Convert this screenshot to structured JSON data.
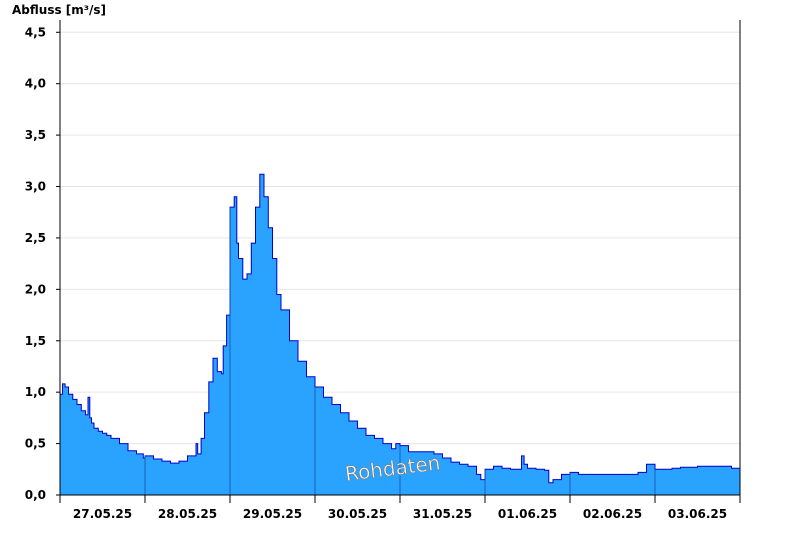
{
  "chart_data": {
    "type": "area",
    "ylabel": "Abfluss [m³/s]",
    "ylim": [
      0,
      4.6
    ],
    "y_ticks": [
      "0,0",
      "0,5",
      "1,0",
      "1,5",
      "2,0",
      "2,5",
      "3,0",
      "3,5",
      "4,0",
      "4,5"
    ],
    "y_tick_values": [
      0,
      0.5,
      1.0,
      1.5,
      2.0,
      2.5,
      3.0,
      3.5,
      4.0,
      4.5
    ],
    "x_ticks": [
      "27.05.25",
      "28.05.25",
      "29.05.25",
      "30.05.25",
      "31.05.25",
      "01.06.25",
      "02.06.25",
      "03.06.25"
    ],
    "x_unit": "days",
    "xlim": [
      0,
      8
    ],
    "grid": true,
    "annotation": "Rohdaten",
    "colors": {
      "fill": "#29a3ff",
      "line": "#0000cc",
      "grid": "#e6e6e6"
    },
    "series": [
      {
        "x": [
          0,
          0.03,
          0.06,
          0.1,
          0.15,
          0.2,
          0.25,
          0.3,
          0.33,
          0.35,
          0.37,
          0.4,
          0.45,
          0.5,
          0.55,
          0.6,
          0.7,
          0.8,
          0.9,
          0.98,
          1.0,
          1.1,
          1.2,
          1.3,
          1.4,
          1.5,
          1.6,
          1.62,
          1.66,
          1.7,
          1.75,
          1.8,
          1.85,
          1.9,
          1.92,
          1.96,
          2.0,
          2.05,
          2.08,
          2.1,
          2.15,
          2.2,
          2.25,
          2.3,
          2.35,
          2.4,
          2.45,
          2.5,
          2.55,
          2.6,
          2.7,
          2.8,
          2.9,
          3.0,
          3.1,
          3.2,
          3.3,
          3.4,
          3.5,
          3.6,
          3.7,
          3.8,
          3.9,
          3.95,
          4.0,
          4.1,
          4.2,
          4.3,
          4.4,
          4.5,
          4.6,
          4.7,
          4.8,
          4.9,
          4.95,
          5.0,
          5.1,
          5.2,
          5.3,
          5.4,
          5.43,
          5.46,
          5.5,
          5.6,
          5.7,
          5.75,
          5.8,
          5.9,
          6.0,
          6.1,
          6.2,
          6.3,
          6.4,
          6.5,
          6.6,
          6.7,
          6.8,
          6.9,
          7.0,
          7.1,
          7.2,
          7.3,
          7.4,
          7.5,
          7.6,
          7.7,
          7.8,
          7.9,
          8.0
        ],
        "y": [
          0.98,
          1.08,
          1.05,
          0.98,
          0.93,
          0.88,
          0.82,
          0.78,
          0.95,
          0.75,
          0.7,
          0.65,
          0.62,
          0.6,
          0.58,
          0.55,
          0.5,
          0.43,
          0.4,
          0.36,
          0.38,
          0.35,
          0.33,
          0.31,
          0.33,
          0.38,
          0.5,
          0.4,
          0.55,
          0.8,
          1.1,
          1.33,
          1.2,
          1.18,
          1.45,
          1.75,
          2.8,
          2.9,
          2.45,
          2.3,
          2.1,
          2.15,
          2.45,
          2.8,
          3.12,
          2.9,
          2.6,
          2.3,
          1.95,
          1.8,
          1.5,
          1.3,
          1.15,
          1.05,
          0.95,
          0.88,
          0.8,
          0.72,
          0.65,
          0.58,
          0.55,
          0.5,
          0.45,
          0.5,
          0.48,
          0.42,
          0.42,
          0.42,
          0.4,
          0.36,
          0.32,
          0.3,
          0.28,
          0.2,
          0.15,
          0.25,
          0.28,
          0.26,
          0.25,
          0.25,
          0.38,
          0.3,
          0.26,
          0.25,
          0.24,
          0.12,
          0.15,
          0.2,
          0.22,
          0.2,
          0.2,
          0.2,
          0.2,
          0.2,
          0.2,
          0.2,
          0.22,
          0.3,
          0.25,
          0.25,
          0.26,
          0.27,
          0.27,
          0.28,
          0.28,
          0.28,
          0.28,
          0.26,
          0.25
        ]
      }
    ]
  }
}
